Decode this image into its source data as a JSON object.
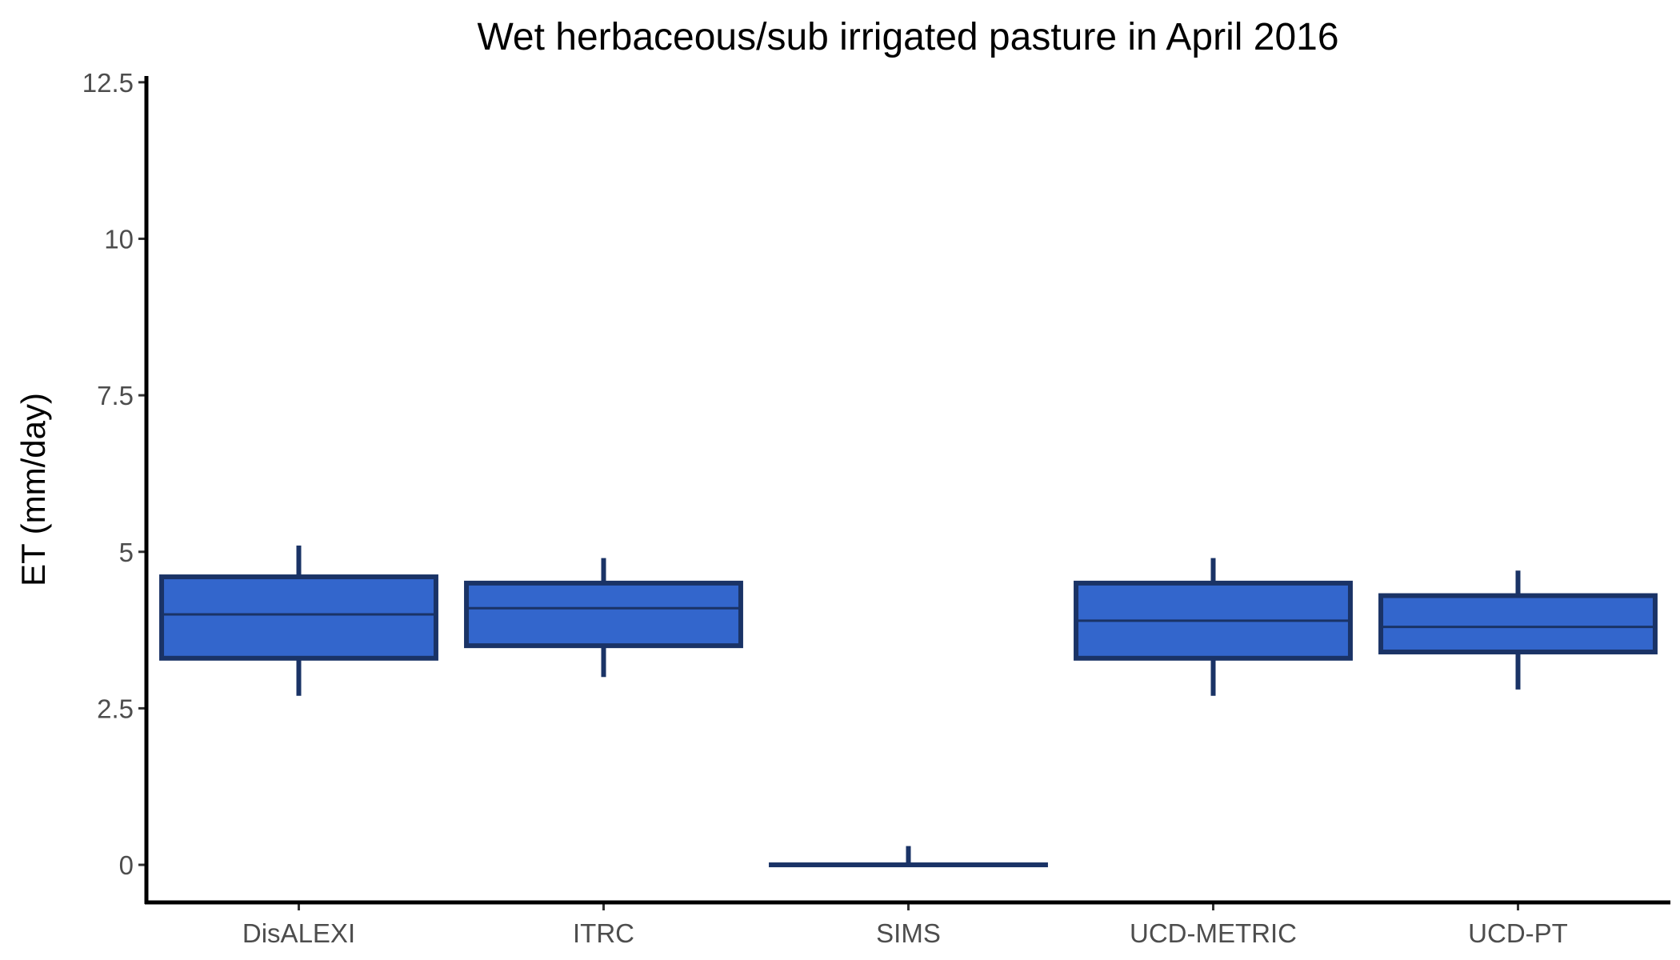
{
  "chart_data": {
    "type": "box",
    "title": "Wet herbaceous/sub irrigated pasture in April 2016",
    "xlabel": "",
    "ylabel": "ET (mm/day)",
    "ylim": [
      -0.6,
      12.6
    ],
    "yticks": [
      0,
      2.5,
      5,
      7.5,
      10,
      12.5
    ],
    "ytick_labels": [
      "0",
      "2.5",
      "5",
      "7.5",
      "10",
      "12.5"
    ],
    "grid": false,
    "legend": "none",
    "fill_color": "#3366CC",
    "line_color": "#1A3366",
    "categories": [
      "DisALEXI",
      "ITRC",
      "SIMS",
      "UCD-METRIC",
      "UCD-PT"
    ],
    "boxes": [
      {
        "category": "DisALEXI",
        "min": 2.7,
        "q1": 3.3,
        "median": 4.0,
        "q3": 4.6,
        "max": 5.1
      },
      {
        "category": "ITRC",
        "min": 3.0,
        "q1": 3.5,
        "median": 4.1,
        "q3": 4.5,
        "max": 4.9
      },
      {
        "category": "SIMS",
        "min": 0.0,
        "q1": 0.0,
        "median": 0.0,
        "q3": 0.0,
        "max": 0.3
      },
      {
        "category": "UCD-METRIC",
        "min": 2.7,
        "q1": 3.3,
        "median": 3.9,
        "q3": 4.5,
        "max": 4.9
      },
      {
        "category": "UCD-PT",
        "min": 2.8,
        "q1": 3.4,
        "median": 3.8,
        "q3": 4.3,
        "max": 4.7
      }
    ]
  }
}
